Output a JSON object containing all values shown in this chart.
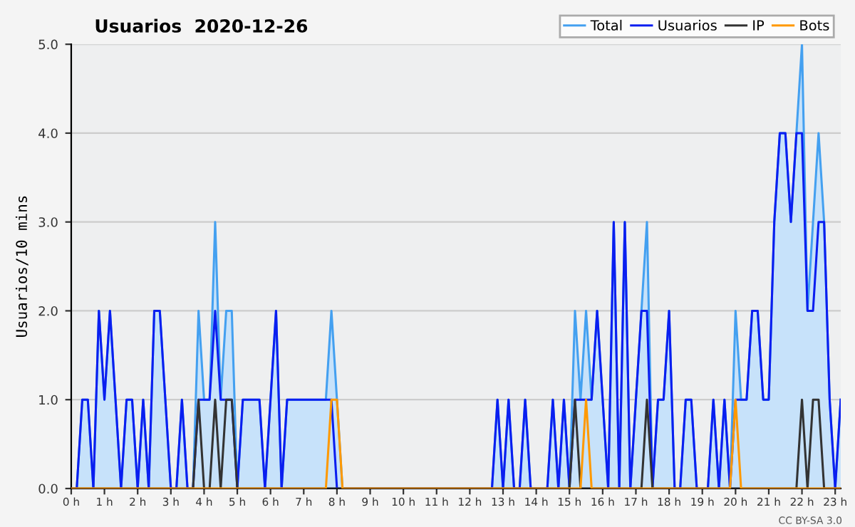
{
  "chart_data": {
    "type": "line",
    "title": "Usuarios  2020-12-26",
    "ylabel": "Usuarios/10 mins",
    "annotations": [
      "CC BY-SA 3.0"
    ],
    "x": [
      0,
      0.1667,
      0.3333,
      0.5,
      0.6667,
      0.8333,
      1,
      1.1667,
      1.3333,
      1.5,
      1.6667,
      1.8333,
      2,
      2.1667,
      2.3333,
      2.5,
      2.6667,
      2.8333,
      3,
      3.1667,
      3.3333,
      3.5,
      3.6667,
      3.8333,
      4,
      4.1667,
      4.3333,
      4.5,
      4.6667,
      4.8333,
      5,
      5.1667,
      5.3333,
      5.5,
      5.6667,
      5.8333,
      6,
      6.1667,
      6.3333,
      6.5,
      6.6667,
      6.8333,
      7,
      7.1667,
      7.3333,
      7.5,
      7.6667,
      7.8333,
      8,
      8.1667,
      8.3333,
      8.5,
      8.6667,
      8.8333,
      9,
      9.1667,
      9.3333,
      9.5,
      9.6667,
      9.8333,
      10,
      10.1667,
      10.3333,
      10.5,
      10.6667,
      10.8333,
      11,
      11.1667,
      11.3333,
      11.5,
      11.6667,
      11.8333,
      12,
      12.1667,
      12.3333,
      12.5,
      12.6667,
      12.8333,
      13,
      13.1667,
      13.3333,
      13.5,
      13.6667,
      13.8333,
      14,
      14.1667,
      14.3333,
      14.5,
      14.6667,
      14.8333,
      15,
      15.1667,
      15.3333,
      15.5,
      15.6667,
      15.8333,
      16,
      16.1667,
      16.3333,
      16.5,
      16.6667,
      16.8333,
      17,
      17.1667,
      17.3333,
      17.5,
      17.6667,
      17.8333,
      18,
      18.1667,
      18.3333,
      18.5,
      18.6667,
      18.8333,
      19,
      19.1667,
      19.3333,
      19.5,
      19.6667,
      19.8333,
      20,
      20.1667,
      20.3333,
      20.5,
      20.6667,
      20.8333,
      21,
      21.1667,
      21.3333,
      21.5,
      21.6667,
      21.8333,
      22,
      22.1667,
      22.3333,
      22.5,
      22.6667,
      22.8333,
      23,
      23.1667
    ],
    "series": [
      {
        "name": "Total",
        "type": "area",
        "color": "#44a0f0",
        "values": [
          0,
          0,
          1,
          1,
          0,
          2,
          1,
          2,
          1,
          0,
          1,
          1,
          0,
          1,
          0,
          2,
          2,
          1,
          0,
          0,
          1,
          0,
          0,
          2,
          1,
          1,
          3,
          1,
          2,
          2,
          0,
          1,
          1,
          1,
          1,
          0,
          1,
          2,
          0,
          1,
          1,
          1,
          1,
          1,
          1,
          1,
          1,
          2,
          1,
          0,
          0,
          0,
          0,
          0,
          0,
          0,
          0,
          0,
          0,
          0,
          0,
          0,
          0,
          0,
          0,
          0,
          0,
          0,
          0,
          0,
          0,
          0,
          0,
          0,
          0,
          0,
          0,
          1,
          0,
          1,
          0,
          0,
          1,
          0,
          0,
          0,
          0,
          1,
          0,
          1,
          0,
          2,
          1,
          2,
          1,
          2,
          1,
          0,
          3,
          0,
          3,
          0,
          1,
          2,
          3,
          0,
          1,
          1,
          2,
          0,
          0,
          1,
          1,
          0,
          0,
          0,
          1,
          0,
          1,
          0,
          2,
          1,
          1,
          2,
          2,
          1,
          1,
          3,
          4,
          4,
          3,
          4,
          5,
          2,
          3,
          4,
          3,
          1,
          0,
          1
        ]
      },
      {
        "name": "Usuarios",
        "color": "#0a1ef0",
        "values": [
          0,
          0,
          1,
          1,
          0,
          2,
          1,
          2,
          1,
          0,
          1,
          1,
          0,
          1,
          0,
          2,
          2,
          1,
          0,
          0,
          1,
          0,
          0,
          1,
          1,
          1,
          2,
          1,
          1,
          1,
          0,
          1,
          1,
          1,
          1,
          0,
          1,
          2,
          0,
          1,
          1,
          1,
          1,
          1,
          1,
          1,
          1,
          1,
          0,
          0,
          0,
          0,
          0,
          0,
          0,
          0,
          0,
          0,
          0,
          0,
          0,
          0,
          0,
          0,
          0,
          0,
          0,
          0,
          0,
          0,
          0,
          0,
          0,
          0,
          0,
          0,
          0,
          1,
          0,
          1,
          0,
          0,
          1,
          0,
          0,
          0,
          0,
          1,
          0,
          1,
          0,
          1,
          1,
          1,
          1,
          2,
          1,
          0,
          3,
          0,
          3,
          0,
          1,
          2,
          2,
          0,
          1,
          1,
          2,
          0,
          0,
          1,
          1,
          0,
          0,
          0,
          1,
          0,
          1,
          0,
          1,
          1,
          1,
          2,
          2,
          1,
          1,
          3,
          4,
          4,
          3,
          4,
          4,
          2,
          2,
          3,
          3,
          1,
          0,
          1
        ]
      },
      {
        "name": "IP",
        "color": "#333333",
        "values": [
          0,
          0,
          0,
          0,
          0,
          0,
          0,
          0,
          0,
          0,
          0,
          0,
          0,
          0,
          0,
          0,
          0,
          0,
          0,
          0,
          0,
          0,
          0,
          1,
          0,
          0,
          1,
          0,
          1,
          1,
          0,
          0,
          0,
          0,
          0,
          0,
          0,
          0,
          0,
          0,
          0,
          0,
          0,
          0,
          0,
          0,
          0,
          0,
          0,
          0,
          0,
          0,
          0,
          0,
          0,
          0,
          0,
          0,
          0,
          0,
          0,
          0,
          0,
          0,
          0,
          0,
          0,
          0,
          0,
          0,
          0,
          0,
          0,
          0,
          0,
          0,
          0,
          0,
          0,
          0,
          0,
          0,
          0,
          0,
          0,
          0,
          0,
          0,
          0,
          0,
          0,
          1,
          0,
          0,
          0,
          0,
          0,
          0,
          0,
          0,
          0,
          0,
          0,
          0,
          1,
          0,
          0,
          0,
          0,
          0,
          0,
          0,
          0,
          0,
          0,
          0,
          0,
          0,
          0,
          0,
          0,
          0,
          0,
          0,
          0,
          0,
          0,
          0,
          0,
          0,
          0,
          0,
          1,
          0,
          1,
          1,
          0,
          0,
          0,
          0
        ]
      },
      {
        "name": "Bots",
        "color": "#ff9900",
        "values": [
          0,
          0,
          0,
          0,
          0,
          0,
          0,
          0,
          0,
          0,
          0,
          0,
          0,
          0,
          0,
          0,
          0,
          0,
          0,
          0,
          0,
          0,
          0,
          0,
          0,
          0,
          0,
          0,
          0,
          0,
          0,
          0,
          0,
          0,
          0,
          0,
          0,
          0,
          0,
          0,
          0,
          0,
          0,
          0,
          0,
          0,
          0,
          1,
          1,
          0,
          0,
          0,
          0,
          0,
          0,
          0,
          0,
          0,
          0,
          0,
          0,
          0,
          0,
          0,
          0,
          0,
          0,
          0,
          0,
          0,
          0,
          0,
          0,
          0,
          0,
          0,
          0,
          0,
          0,
          0,
          0,
          0,
          0,
          0,
          0,
          0,
          0,
          0,
          0,
          0,
          0,
          0,
          0,
          1,
          0,
          0,
          0,
          0,
          0,
          0,
          0,
          0,
          0,
          0,
          0,
          0,
          0,
          0,
          0,
          0,
          0,
          0,
          0,
          0,
          0,
          0,
          0,
          0,
          0,
          0,
          1,
          0,
          0,
          0,
          0,
          0,
          0,
          0,
          0,
          0,
          0,
          0,
          0,
          0,
          0,
          0,
          0,
          0,
          0,
          0
        ]
      }
    ],
    "xlim": [
      0,
      23.1667
    ],
    "xticks": [
      {
        "value": 0,
        "label": "0 h"
      },
      {
        "value": 1,
        "label": "1 h"
      },
      {
        "value": 2,
        "label": "2 h"
      },
      {
        "value": 3,
        "label": "3 h"
      },
      {
        "value": 4,
        "label": "4 h"
      },
      {
        "value": 5,
        "label": "5 h"
      },
      {
        "value": 6,
        "label": "6 h"
      },
      {
        "value": 7,
        "label": "7 h"
      },
      {
        "value": 8,
        "label": "8 h"
      },
      {
        "value": 9,
        "label": "9 h"
      },
      {
        "value": 10,
        "label": "10 h"
      },
      {
        "value": 11,
        "label": "11 h"
      },
      {
        "value": 12,
        "label": "12 h"
      },
      {
        "value": 13,
        "label": "13 h"
      },
      {
        "value": 14,
        "label": "14 h"
      },
      {
        "value": 15,
        "label": "15 h"
      },
      {
        "value": 16,
        "label": "16 h"
      },
      {
        "value": 17,
        "label": "17 h"
      },
      {
        "value": 18,
        "label": "18 h"
      },
      {
        "value": 19,
        "label": "19 h"
      },
      {
        "value": 20,
        "label": "20 h"
      },
      {
        "value": 21,
        "label": "21 h"
      },
      {
        "value": 22,
        "label": "22 h"
      },
      {
        "value": 23,
        "label": "23 h"
      }
    ],
    "ylim": [
      0,
      5
    ],
    "yticks": [
      {
        "value": 0,
        "label": "0.0"
      },
      {
        "value": 1,
        "label": "1.0"
      },
      {
        "value": 2,
        "label": "2.0"
      },
      {
        "value": 3,
        "label": "3.0"
      },
      {
        "value": 4,
        "label": "4.0"
      },
      {
        "value": 5,
        "label": "5.0"
      }
    ],
    "grid": "y",
    "legend": "top right"
  }
}
